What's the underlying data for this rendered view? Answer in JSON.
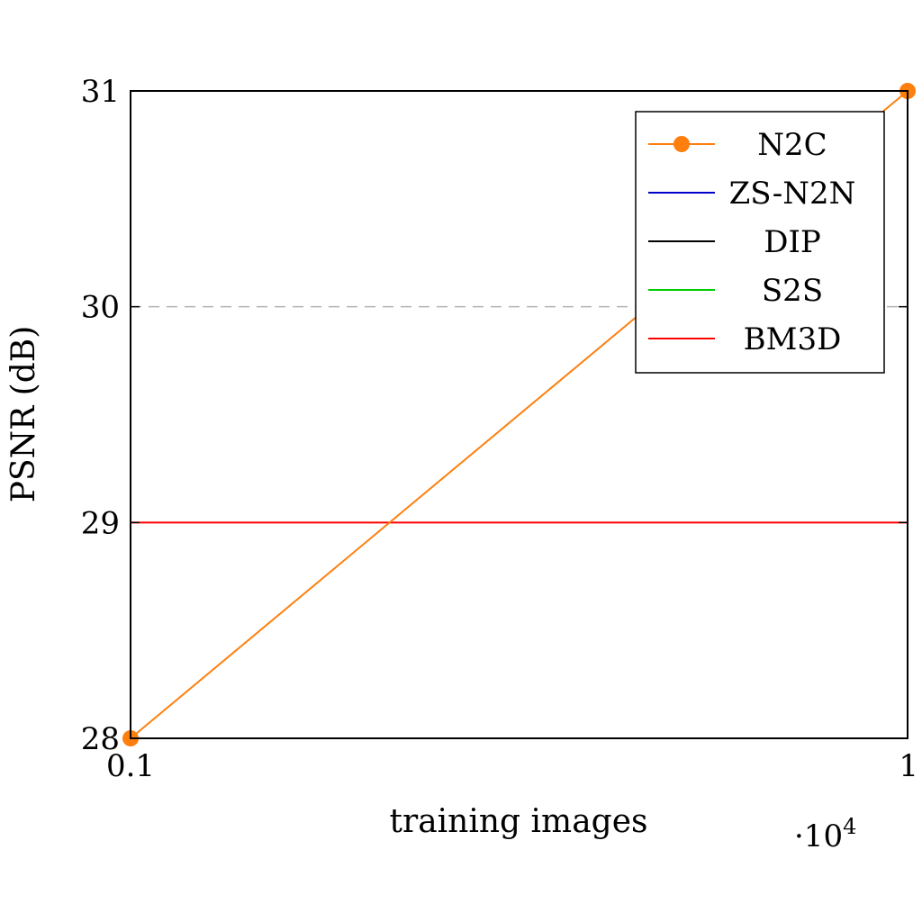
{
  "chart_data": {
    "type": "line",
    "title": "",
    "xlabel": "training images",
    "ylabel": "PSNR (dB)",
    "x_multiplier": "·10",
    "x_multiplier_exp": "4",
    "xlim": [
      0.1,
      1
    ],
    "ylim": [
      28,
      31
    ],
    "x_ticks": [
      "0.1",
      "1"
    ],
    "y_ticks": [
      "28",
      "29",
      "30",
      "31"
    ],
    "gridlines": [
      {
        "y": 30,
        "style": "dashed",
        "color": "#b3b3b3"
      }
    ],
    "legend_position": "top-right",
    "series": [
      {
        "name": "N2C",
        "color": "#ff7f0e",
        "marker": "circle",
        "x": [
          0.1,
          1
        ],
        "y": [
          28,
          31
        ]
      },
      {
        "name": "ZS-N2N",
        "color": "#0000cc",
        "marker": "none",
        "x": [
          0.1,
          1
        ],
        "y": [
          28,
          28
        ]
      },
      {
        "name": "DIP",
        "color": "#000000",
        "marker": "none",
        "x": [
          0.1,
          1
        ],
        "y": [
          28,
          28
        ]
      },
      {
        "name": "S2S",
        "color": "#00cc00",
        "marker": "none",
        "x": [
          0.1,
          1
        ],
        "y": [
          28,
          28
        ]
      },
      {
        "name": "BM3D",
        "color": "#ff0000",
        "marker": "none",
        "x": [
          0.1,
          1
        ],
        "y": [
          29,
          29
        ]
      }
    ]
  }
}
